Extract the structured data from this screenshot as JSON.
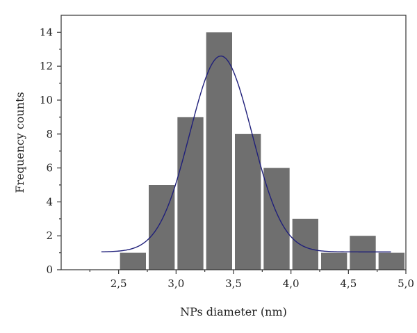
{
  "chart_data": {
    "type": "bar",
    "xlabel": "NPs diameter (nm)",
    "ylabel": "Frequency counts",
    "xlim": [
      2.0,
      5.0
    ],
    "ylim": [
      0,
      15
    ],
    "xticks": [
      2.5,
      3.0,
      3.5,
      4.0,
      4.5,
      5.0
    ],
    "xtick_labels": [
      "2,5",
      "3,0",
      "3,5",
      "4,0",
      "4,5",
      "5,0"
    ],
    "yticks": [
      0,
      2,
      4,
      6,
      8,
      10,
      12,
      14
    ],
    "ytick_labels": [
      "0",
      "2",
      "4",
      "6",
      "8",
      "10",
      "12",
      "14"
    ],
    "bin_width": 0.25,
    "bars": [
      {
        "x": 2.625,
        "value": 1
      },
      {
        "x": 2.875,
        "value": 5
      },
      {
        "x": 3.125,
        "value": 9
      },
      {
        "x": 3.375,
        "value": 14
      },
      {
        "x": 3.625,
        "value": 8
      },
      {
        "x": 3.875,
        "value": 6
      },
      {
        "x": 4.125,
        "value": 3
      },
      {
        "x": 4.375,
        "value": 1
      },
      {
        "x": 4.625,
        "value": 2
      },
      {
        "x": 4.875,
        "value": 1
      }
    ],
    "fit_curve": {
      "type": "gaussian",
      "baseline": 1.05,
      "amplitude": 11.55,
      "center": 3.39,
      "sigma": 0.27,
      "x_range": [
        2.35,
        4.87
      ],
      "color": "#1f1f7a"
    },
    "bar_color": "#6f6f6f",
    "grid": false
  }
}
